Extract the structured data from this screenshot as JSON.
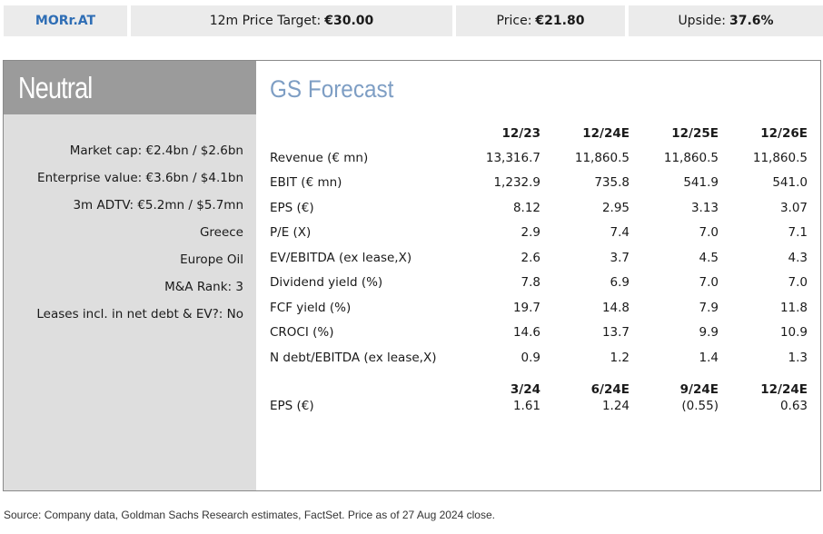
{
  "header": {
    "ticker": "MORr.AT",
    "price_target_label": "12m Price Target:",
    "price_target_value": "€30.00",
    "price_label": "Price:",
    "price_value": "€21.80",
    "upside_label": "Upside:",
    "upside_value": "37.6%"
  },
  "sidebar": {
    "rating": "Neutral",
    "stats": [
      "Market cap: €2.4bn / $2.6bn",
      "Enterprise value: €3.6bn / $4.1bn",
      "3m ADTV: €5.2mn / $5.7mn",
      "Greece",
      "Europe Oil",
      "M&A Rank: 3",
      "Leases incl. in net debt & EV?: No"
    ]
  },
  "forecast": {
    "title": "GS Forecast",
    "columns": [
      "12/23",
      "12/24E",
      "12/25E",
      "12/26E"
    ],
    "rows": [
      {
        "label": "Revenue (€ mn)",
        "values": [
          "13,316.7",
          "11,860.5",
          "11,860.5",
          "11,860.5"
        ]
      },
      {
        "label": "EBIT (€ mn)",
        "values": [
          "1,232.9",
          "735.8",
          "541.9",
          "541.0"
        ]
      },
      {
        "label": "EPS (€)",
        "values": [
          "8.12",
          "2.95",
          "3.13",
          "3.07"
        ]
      },
      {
        "label": "P/E (X)",
        "values": [
          "2.9",
          "7.4",
          "7.0",
          "7.1"
        ]
      },
      {
        "label": "EV/EBITDA (ex lease,X)",
        "values": [
          "2.6",
          "3.7",
          "4.5",
          "4.3"
        ]
      },
      {
        "label": "Dividend yield (%)",
        "values": [
          "7.8",
          "6.9",
          "7.0",
          "7.0"
        ]
      },
      {
        "label": "FCF yield (%)",
        "values": [
          "19.7",
          "14.8",
          "7.9",
          "11.8"
        ]
      },
      {
        "label": "CROCI (%)",
        "values": [
          "14.6",
          "13.7",
          "9.9",
          "10.9"
        ]
      },
      {
        "label": "N debt/EBITDA (ex lease,X)",
        "values": [
          "0.9",
          "1.2",
          "1.4",
          "1.3"
        ]
      }
    ]
  },
  "quarterly": {
    "columns": [
      "3/24",
      "6/24E",
      "9/24E",
      "12/24E"
    ],
    "rows": [
      {
        "label": "EPS (€)",
        "values": [
          "1.61",
          "1.24",
          "(0.55)",
          "0.63"
        ]
      }
    ]
  },
  "footer": {
    "source": "Source: Company data, Goldman Sachs Research estimates, FactSet. Price as of 27 Aug 2024 close."
  }
}
